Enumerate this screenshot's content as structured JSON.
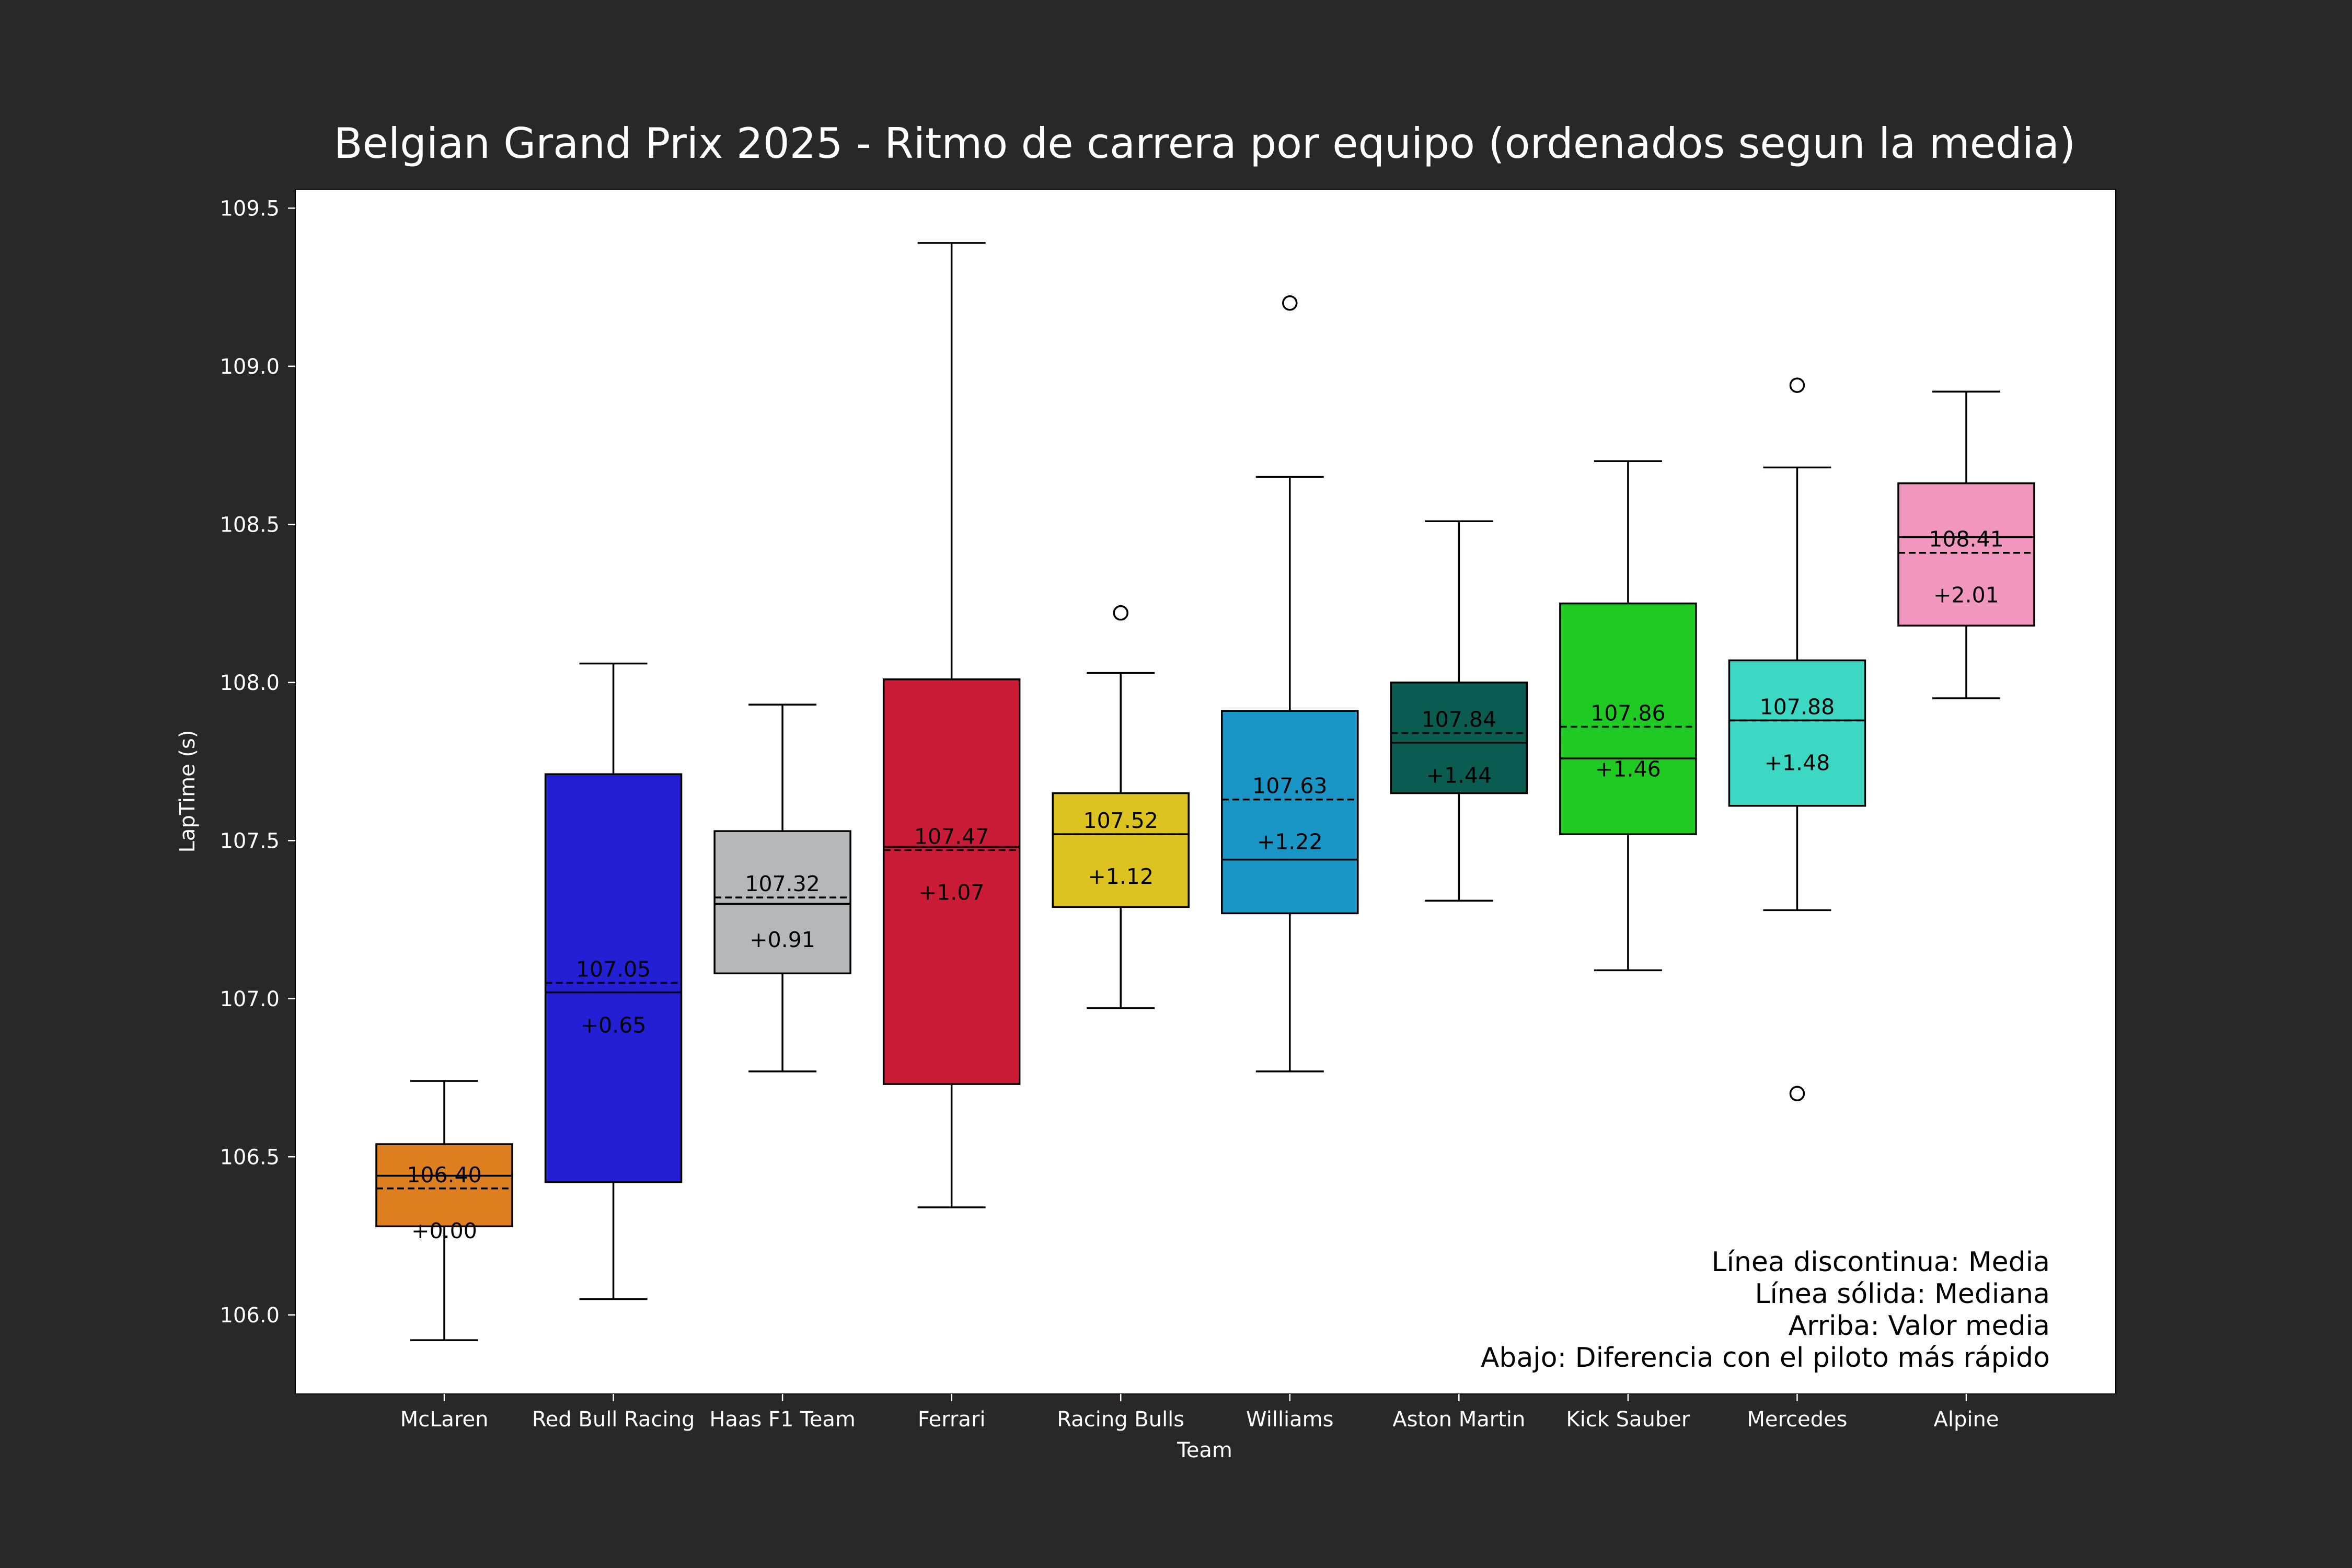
{
  "chart_data": {
    "type": "box",
    "title": "Belgian Grand Prix 2025 - Ritmo de carrera por equipo (ordenados segun la media)",
    "xlabel": "Team",
    "ylabel": "LapTime (s)",
    "ylim": [
      105.75,
      109.56
    ],
    "yticks": [
      106.0,
      106.5,
      107.0,
      107.5,
      108.0,
      108.5,
      109.0,
      109.5
    ],
    "ytick_labels": [
      "106.0",
      "106.5",
      "107.0",
      "107.5",
      "108.0",
      "108.5",
      "109.0",
      "109.5"
    ],
    "grid": false,
    "annotation_lines": [
      "Línea discontinua: Media",
      "Línea sólida: Mediana",
      "Arriba: Valor media",
      "Abajo: Diferencia con el piloto más rápido"
    ],
    "teams": [
      {
        "name": "McLaren",
        "color": "#de7f1f",
        "whislo": 105.92,
        "q1": 106.28,
        "median": 106.44,
        "q3": 106.54,
        "whishi": 106.74,
        "mean": 106.4,
        "mean_label": "106.40",
        "diff_label": "+0.00",
        "fliers": []
      },
      {
        "name": "Red Bull Racing",
        "color": "#231fd4",
        "whislo": 106.05,
        "q1": 106.42,
        "median": 107.02,
        "q3": 107.71,
        "whishi": 108.06,
        "mean": 107.05,
        "mean_label": "107.05",
        "diff_label": "+0.65",
        "fliers": []
      },
      {
        "name": "Haas F1 Team",
        "color": "#b5b8ba",
        "whislo": 106.77,
        "q1": 107.08,
        "median": 107.3,
        "q3": 107.53,
        "whishi": 107.93,
        "mean": 107.32,
        "mean_label": "107.32",
        "diff_label": "+0.91",
        "fliers": []
      },
      {
        "name": "Ferrari",
        "color": "#cb1c37",
        "whislo": 106.34,
        "q1": 106.73,
        "median": 107.48,
        "q3": 108.01,
        "whishi": 109.39,
        "mean": 107.47,
        "mean_label": "107.47",
        "diff_label": "+1.07",
        "fliers": []
      },
      {
        "name": "Racing Bulls",
        "color": "#dcc320",
        "whislo": 106.97,
        "q1": 107.29,
        "median": 107.52,
        "q3": 107.65,
        "whishi": 108.03,
        "mean": 107.52,
        "mean_label": "107.52",
        "diff_label": "+1.12",
        "fliers": [
          108.22
        ]
      },
      {
        "name": "Williams",
        "color": "#1a96c6",
        "whislo": 106.77,
        "q1": 107.27,
        "median": 107.44,
        "q3": 107.91,
        "whishi": 108.65,
        "mean": 107.63,
        "mean_label": "107.63",
        "diff_label": "+1.22",
        "fliers": [
          109.2
        ]
      },
      {
        "name": "Aston Martin",
        "color": "#0a5c50",
        "whislo": 107.31,
        "q1": 107.65,
        "median": 107.81,
        "q3": 108.0,
        "whishi": 108.51,
        "mean": 107.84,
        "mean_label": "107.84",
        "diff_label": "+1.44",
        "fliers": []
      },
      {
        "name": "Kick Sauber",
        "color": "#1fcb23",
        "whislo": 107.09,
        "q1": 107.52,
        "median": 107.76,
        "q3": 108.25,
        "whishi": 108.7,
        "mean": 107.86,
        "mean_label": "107.86",
        "diff_label": "+1.46",
        "fliers": []
      },
      {
        "name": "Mercedes",
        "color": "#3dd8c3",
        "whislo": 107.28,
        "q1": 107.61,
        "median": 107.88,
        "q3": 108.07,
        "whishi": 108.68,
        "mean": 107.88,
        "mean_label": "107.88",
        "diff_label": "+1.48",
        "fliers": [
          108.94,
          106.7
        ]
      },
      {
        "name": "Alpine",
        "color": "#f096bf",
        "whislo": 107.95,
        "q1": 108.18,
        "median": 108.46,
        "q3": 108.63,
        "whishi": 108.92,
        "mean": 108.41,
        "mean_label": "108.41",
        "diff_label": "+2.01",
        "fliers": []
      }
    ]
  }
}
